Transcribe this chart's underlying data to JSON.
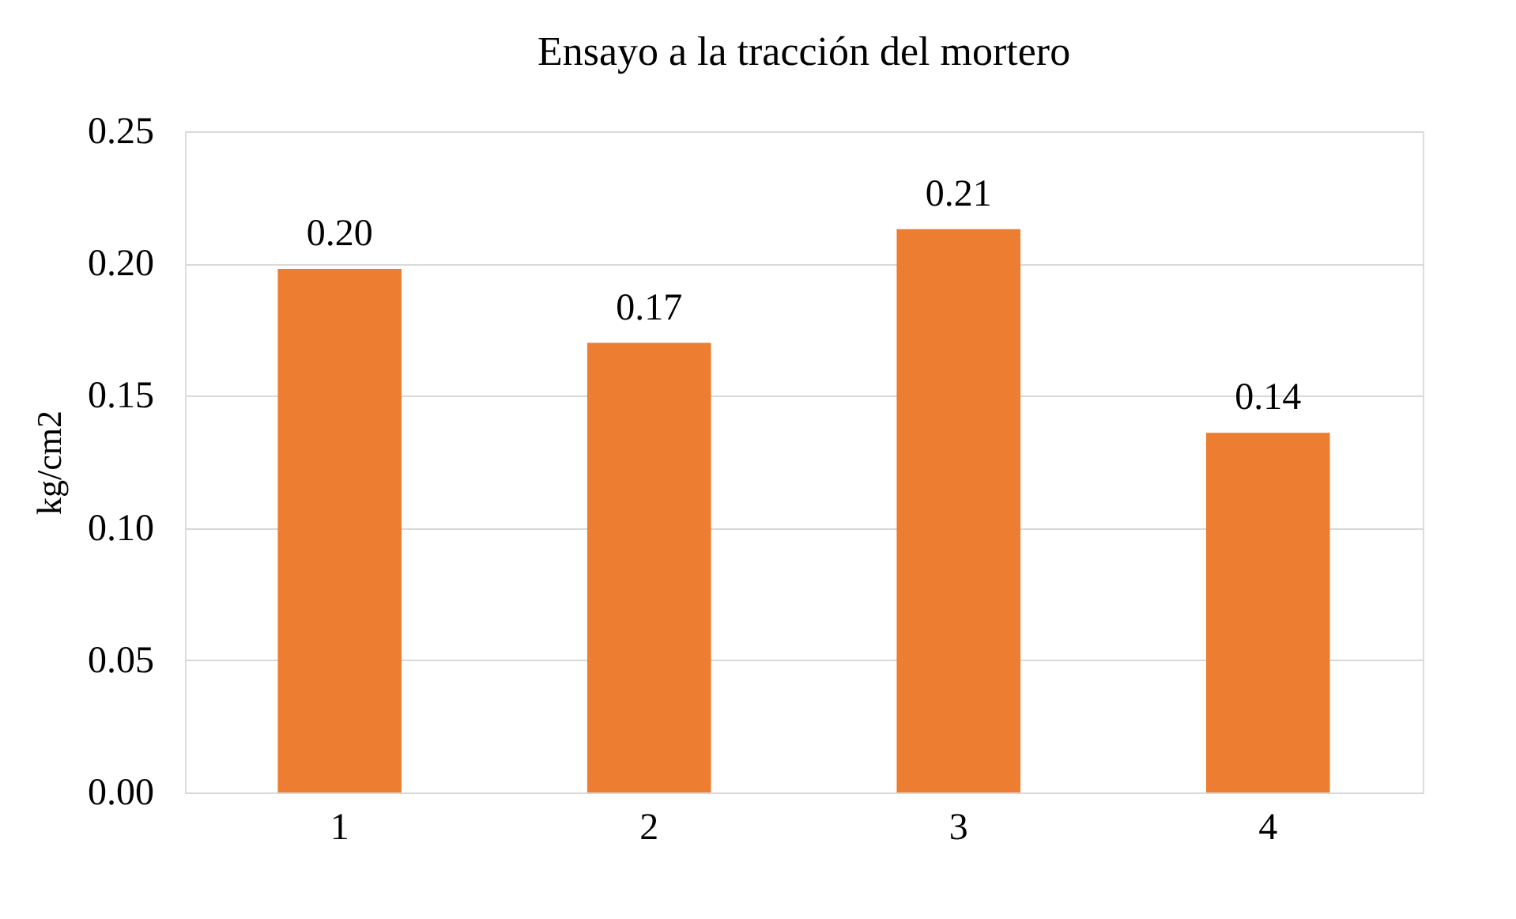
{
  "chart_data": {
    "type": "bar",
    "title": "Ensayo a la tracción del mortero",
    "ylabel": "kg/cm2",
    "categories": [
      "1",
      "2",
      "3",
      "4"
    ],
    "values": [
      0.198,
      0.17,
      0.213,
      0.136
    ],
    "value_labels": [
      "0.20",
      "0.17",
      "0.21",
      "0.14"
    ],
    "color": "#ed7d31",
    "ylim": [
      0,
      0.25
    ],
    "yticks": [
      {
        "value": 0,
        "label": "0.00"
      },
      {
        "value": 0.05,
        "label": "0.05"
      },
      {
        "value": 0.1,
        "label": "0.10"
      },
      {
        "value": 0.15,
        "label": "0.15"
      },
      {
        "value": 0.2,
        "label": "0.20"
      },
      {
        "value": 0.25,
        "label": "0.25"
      }
    ],
    "grid": "y"
  }
}
